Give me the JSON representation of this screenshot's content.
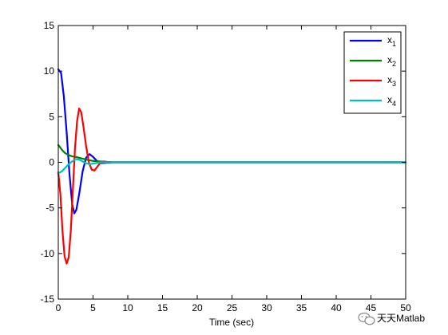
{
  "chart_data": {
    "type": "line",
    "title": "",
    "xlabel": "Time (sec)",
    "ylabel": "",
    "xlim": [
      0,
      50
    ],
    "ylim": [
      -15,
      15
    ],
    "xticks": [
      0,
      5,
      10,
      15,
      20,
      25,
      30,
      35,
      40,
      45,
      50
    ],
    "yticks": [
      -15,
      -10,
      -5,
      0,
      5,
      10,
      15
    ],
    "grid": false,
    "legend": {
      "placement": "top-right"
    },
    "series": [
      {
        "name": "x",
        "subscript": "1",
        "color": "#0000ff",
        "points": [
          [
            0,
            10.2
          ],
          [
            0.4,
            9.8
          ],
          [
            0.8,
            7.2
          ],
          [
            1.2,
            3.3
          ],
          [
            1.6,
            -1.2
          ],
          [
            2.0,
            -4.6
          ],
          [
            2.3,
            -5.6
          ],
          [
            2.6,
            -5.2
          ],
          [
            3.0,
            -3.5
          ],
          [
            3.5,
            -1.0
          ],
          [
            4.0,
            0.5
          ],
          [
            4.5,
            0.9
          ],
          [
            5.0,
            0.6
          ],
          [
            5.5,
            0.2
          ],
          [
            6.0,
            -0.1
          ],
          [
            7.0,
            -0.05
          ],
          [
            8.0,
            0
          ],
          [
            50,
            0
          ]
        ]
      },
      {
        "name": "x",
        "subscript": "2",
        "color": "#008000",
        "points": [
          [
            0,
            1.9
          ],
          [
            0.3,
            1.6
          ],
          [
            0.6,
            1.3
          ],
          [
            1.0,
            1.0
          ],
          [
            1.5,
            0.8
          ],
          [
            2.0,
            0.65
          ],
          [
            2.5,
            0.6
          ],
          [
            3.0,
            0.5
          ],
          [
            3.5,
            0.4
          ],
          [
            4.0,
            0.3
          ],
          [
            5.0,
            0.15
          ],
          [
            6.0,
            0.1
          ],
          [
            7.0,
            0.05
          ],
          [
            8.0,
            0
          ],
          [
            50,
            0
          ]
        ]
      },
      {
        "name": "x",
        "subscript": "3",
        "color": "#ff0000",
        "points": [
          [
            0,
            -1.1
          ],
          [
            0.3,
            -3.5
          ],
          [
            0.6,
            -7.5
          ],
          [
            0.9,
            -10.3
          ],
          [
            1.2,
            -11.1
          ],
          [
            1.5,
            -10.4
          ],
          [
            1.8,
            -7.5
          ],
          [
            2.1,
            -3.0
          ],
          [
            2.4,
            1.5
          ],
          [
            2.7,
            4.5
          ],
          [
            3.0,
            5.9
          ],
          [
            3.3,
            5.5
          ],
          [
            3.6,
            4.0
          ],
          [
            4.0,
            1.8
          ],
          [
            4.4,
            0
          ],
          [
            4.8,
            -0.8
          ],
          [
            5.2,
            -0.9
          ],
          [
            5.6,
            -0.5
          ],
          [
            6.0,
            -0.1
          ],
          [
            6.5,
            0.1
          ],
          [
            7.0,
            0.05
          ],
          [
            8.0,
            0
          ],
          [
            50,
            0
          ]
        ]
      },
      {
        "name": "x",
        "subscript": "4",
        "color": "#00bfbf",
        "points": [
          [
            0,
            -1.2
          ],
          [
            0.5,
            -1.0
          ],
          [
            1.0,
            -0.6
          ],
          [
            1.5,
            -0.2
          ],
          [
            2.0,
            0.1
          ],
          [
            2.5,
            0.35
          ],
          [
            3.0,
            0.3
          ],
          [
            3.5,
            0.1
          ],
          [
            4.0,
            -0.1
          ],
          [
            4.5,
            -0.2
          ],
          [
            5.0,
            -0.15
          ],
          [
            6.0,
            0
          ],
          [
            50,
            0
          ]
        ]
      }
    ]
  },
  "watermark": {
    "text": "天天Matlab",
    "icon": "wechat-icon"
  }
}
